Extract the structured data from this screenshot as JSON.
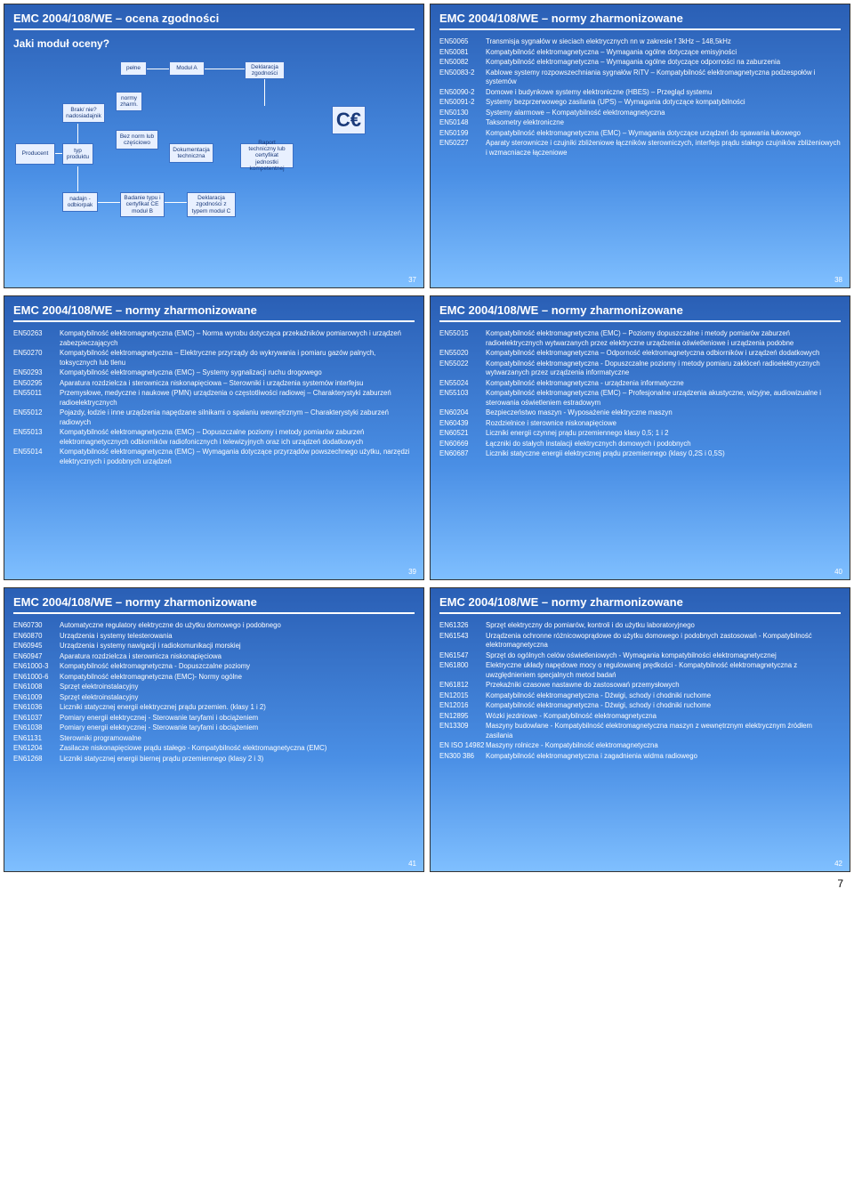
{
  "pageNumber": "7",
  "slide37": {
    "title": "EMC 2004/108/WE – ocena zgodności",
    "subtitle": "Jaki moduł oceny?",
    "num": "37",
    "boxes": {
      "producent": "Producent",
      "typProd": "typ\nproduktu",
      "brakNadaj": "Brak/ nie?\nnadosiadajnik",
      "nadajn": "nadajn -\nodbiorpak",
      "normyZharm": "normy\nzharm.",
      "pelne": "pełne",
      "bezNorm": "Bez norm lub\nczęściowo",
      "modulA": "Moduł A",
      "dokTech": "Dokumentacja\ntechniczna",
      "badanie": "Badanie typu\ni certyfikat CE\nmoduł B",
      "deklZgod": "Deklaracja\nzgodności",
      "deklZgodTyp": "Deklaracja\nzgodności z typem\nmoduł C",
      "raport": "Raport techniczny\nlub certyfikat\njednostki kompetentnej"
    }
  },
  "slide38": {
    "title": "EMC 2004/108/WE – normy zharmonizowane",
    "num": "38",
    "items": [
      {
        "code": "EN50065",
        "desc": "Transmisja sygnałów w sieciach elektrycznych nn w zakresie f 3kHz – 148,5kHz"
      },
      {
        "code": "EN50081",
        "desc": "Kompatybilność elektromagnetyczna – Wymagania ogólne dotyczące emisyjności"
      },
      {
        "code": "EN50082",
        "desc": "Kompatybilność elektromagnetyczna – Wymagania ogólne dotyczące odporności na zaburzenia"
      },
      {
        "code": "EN50083-2",
        "desc": "Kablowe systemy rozpowszechniania sygnałów RiTV – Kompatybilność elektromagnetyczna podzespołów i systemów"
      },
      {
        "code": "EN50090-2",
        "desc": "Domowe i budynkowe systemy elektroniczne (HBES) – Przegląd systemu"
      },
      {
        "code": "EN50091-2",
        "desc": "Systemy bezprzerwowego zasilania (UPS) – Wymagania dotyczące kompatybilności"
      },
      {
        "code": "EN50130",
        "desc": "Systemy alarmowe – Kompatybilność elektromagnetyczna"
      },
      {
        "code": "EN50148",
        "desc": "Taksometry elektroniczne"
      },
      {
        "code": "EN50199",
        "desc": "Kompatybilność elektromagnetyczna (EMC) – Wymagania dotyczące urządzeń do spawania łukowego"
      },
      {
        "code": "EN50227",
        "desc": "Aparaty sterownicze i czujniki zbliżeniowe łączników sterowniczych, interfejs prądu stałego czujników zbliżeniowych i wzmacniacze łączeniowe"
      }
    ]
  },
  "slide39": {
    "title": "EMC 2004/108/WE – normy zharmonizowane",
    "num": "39",
    "items": [
      {
        "code": "EN50263",
        "desc": "Kompatybilność elektromagnetyczna (EMC) – Norma wyrobu dotycząca przekaźników pomiarowych i urządzeń zabezpieczających"
      },
      {
        "code": "EN50270",
        "desc": "Kompatybilność elektromagnetyczna – Elektryczne przyrządy do wykrywania i pomiaru gazów palnych, toksycznych lub tlenu"
      },
      {
        "code": "EN50293",
        "desc": "Kompatybilność elektromagnetyczna (EMC) – Systemy sygnalizacji ruchu drogowego"
      },
      {
        "code": "EN50295",
        "desc": "Aparatura rozdzielcza i sterownicza niskonapięciowa – Sterowniki i urządzenia systemów interfejsu"
      },
      {
        "code": "EN55011",
        "desc": "Przemysłowe, medyczne i naukowe (PMN) urządzenia o częstotliwości radiowej – Charakterystyki zaburzeń radioelektrycznych"
      },
      {
        "code": "EN55012",
        "desc": "Pojazdy, łodzie i inne urządzenia napędzane silnikami o spalaniu wewnętrznym – Charakterystyki zaburzeń radiowych"
      },
      {
        "code": "EN55013",
        "desc": "Kompatybilność elektromagnetyczna (EMC) – Dopuszczalne poziomy i metody pomiarów zaburzeń elektromagnetycznych odbiorników radiofonicznych i telewizyjnych oraz ich urządzeń dodatkowych"
      },
      {
        "code": "EN55014",
        "desc": "Kompatybilność elektromagnetyczna (EMC) – Wymagania dotyczące przyrządów powszechnego użytku, narzędzi elektrycznych i podobnych urządzeń"
      }
    ]
  },
  "slide40": {
    "title": "EMC 2004/108/WE – normy zharmonizowane",
    "num": "40",
    "items": [
      {
        "code": "EN55015",
        "desc": "Kompatybilność elektromagnetyczna (EMC) – Poziomy dopuszczalne i metody pomiarów zaburzeń radioelektrycznych wytwarzanych przez elektryczne urządzenia oświetleniowe i urządzenia podobne"
      },
      {
        "code": "EN55020",
        "desc": "Kompatybilność elektromagnetyczna – Odporność elektromagnetyczna odbiorników i urządzeń dodatkowych"
      },
      {
        "code": "EN55022",
        "desc": "Kompatybilność elektromagnetyczna - Dopuszczalne poziomy i metody pomiaru zakłóceń radioelektrycznych wytwarzanych przez urządzenia informatyczne"
      },
      {
        "code": "EN55024",
        "desc": "Kompatybilność elektromagnetyczna - urządzenia informatyczne"
      },
      {
        "code": "EN55103",
        "desc": "Kompatybilność elektromagnetyczna (EMC) – Profesjonalne urządzenia akustyczne, wizyjne, audiowizualne i sterowania oświetleniem estradowym"
      },
      {
        "code": "EN60204",
        "desc": "Bezpieczeństwo maszyn - Wyposażenie elektryczne maszyn"
      },
      {
        "code": "EN60439",
        "desc": "Rozdzielnice i sterownice niskonapięciowe"
      },
      {
        "code": "EN60521",
        "desc": "Liczniki energii czynnej prądu przemiennego klasy 0,5; 1 i 2"
      },
      {
        "code": "EN60669",
        "desc": "Łączniki do stałych instalacji elektrycznych domowych i podobnych"
      },
      {
        "code": "EN60687",
        "desc": "Liczniki statyczne energii elektrycznej prądu przemiennego (klasy 0,2S i 0,5S)"
      }
    ]
  },
  "slide41": {
    "title": "EMC 2004/108/WE – normy zharmonizowane",
    "num": "41",
    "items": [
      {
        "code": "EN60730",
        "desc": "Automatyczne regulatory elektryczne do użytku domowego i podobnego"
      },
      {
        "code": "EN60870",
        "desc": "Urządzenia i systemy telesterowania"
      },
      {
        "code": "EN60945",
        "desc": "Urządzenia i systemy nawigacji i radiokomunikacji morskiej"
      },
      {
        "code": "EN60947",
        "desc": "Aparatura rozdzielcza i sterownicza niskonapięciowa"
      },
      {
        "code": "EN61000-3",
        "desc": "Kompatybilność elektromagnetyczna - Dopuszczalne poziomy"
      },
      {
        "code": "EN61000-6",
        "desc": "Kompatybilność elektromagnetyczna (EMC)- Normy ogólne"
      },
      {
        "code": "EN61008",
        "desc": "Sprzęt elektroinstalacyjny"
      },
      {
        "code": "EN61009",
        "desc": "Sprzęt elektroinstalacyjny"
      },
      {
        "code": "EN61036",
        "desc": "Liczniki statycznej energii elektrycznej prądu przemien. (klasy 1 i 2)"
      },
      {
        "code": "EN61037",
        "desc": "Pomiary energii elektrycznej - Sterowanie taryfami i obciążeniem"
      },
      {
        "code": "EN61038",
        "desc": "Pomiary energii elektrycznej - Sterowanie taryfami i obciążeniem"
      },
      {
        "code": "EN61131",
        "desc": "Sterowniki programowalne"
      },
      {
        "code": "EN61204",
        "desc": "Zasilacze niskonapięciowe prądu stałego - Kompatybilność elektromagnetyczna (EMC)"
      },
      {
        "code": "EN61268",
        "desc": "Liczniki statycznej energii biernej prądu przemiennego (klasy 2 i 3)"
      }
    ]
  },
  "slide42": {
    "title": "EMC 2004/108/WE – normy zharmonizowane",
    "num": "42",
    "items": [
      {
        "code": "EN61326",
        "desc": "Sprzęt elektryczny do pomiarów, kontroli i do użytku laboratoryjnego"
      },
      {
        "code": "EN61543",
        "desc": "Urządzenia ochronne różnicowoprądowe do użytku domowego i podobnych zastosowań - Kompatybilność elektromagnetyczna"
      },
      {
        "code": "EN61547",
        "desc": "Sprzęt do ogólnych celów oświetleniowych - Wymagania kompatybilności elektromagnetycznej"
      },
      {
        "code": "EN61800",
        "desc": "Elektryczne układy napędowe mocy o regulowanej prędkości - Kompatybilność elektromagnetyczna z uwzględnieniem specjalnych metod badań"
      },
      {
        "code": "EN61812",
        "desc": "Przekaźniki czasowe nastawne do zastosowań przemysłowych"
      },
      {
        "code": "EN12015",
        "desc": "Kompatybilność elektromagnetyczna - Dźwigi, schody i chodniki ruchome"
      },
      {
        "code": "EN12016",
        "desc": "Kompatybilność elektromagnetyczna - Dźwigi, schody i chodniki ruchome"
      },
      {
        "code": "EN12895",
        "desc": "Wózki jezdniowe - Kompatybilność elektromagnetyczna"
      },
      {
        "code": "EN13309",
        "desc": "Maszyny budowlane - Kompatybilność elektromagnetyczna maszyn z wewnętrznym elektrycznym źródłem zasilania"
      },
      {
        "code": "EN ISO 14982",
        "desc": "Maszyny rolnicze - Kompatybilność elektromagnetyczna"
      },
      {
        "code": "EN300 386",
        "desc": "Kompatybilność elektromagnetyczna i zagadnienia widma radiowego"
      }
    ]
  }
}
